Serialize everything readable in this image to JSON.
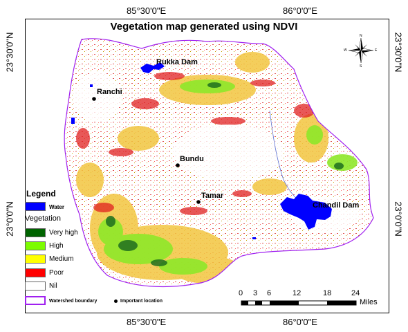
{
  "map": {
    "title": "Vegetation map generated using NDVI",
    "coordinates": {
      "top_left": "85°30'0\"E",
      "top_right": "86°0'0\"E",
      "bottom_left": "85°30'0\"E",
      "bottom_right": "86°0'0\"E",
      "left_top": "23°30'0\"N",
      "left_bottom": "23°0'0\"N",
      "right_top": "23°30'0\"N",
      "right_bottom": "23°0'0\"N"
    },
    "places": {
      "rukka": "Rukka Dam",
      "ranchi": "Ranchi",
      "bundu": "Bundu",
      "tamar": "Tamar",
      "chandil": "Chandil Dam"
    },
    "north_arrow": {
      "n": "N",
      "s": "S",
      "e": "E",
      "w": "W"
    }
  },
  "legend": {
    "title": "Legend",
    "water": {
      "label": "Water",
      "color": "#0000ff"
    },
    "vegetation_heading": "Vegetation",
    "classes": [
      {
        "label": "Very high",
        "color": "#006400"
      },
      {
        "label": "High",
        "color": "#7cfc00"
      },
      {
        "label": "Medium",
        "color": "#ffff00"
      },
      {
        "label": "Poor",
        "color": "#ff0000"
      },
      {
        "label": "Nil",
        "color": "#ffffff"
      }
    ],
    "boundary": {
      "label": "Watershed boundary",
      "color": "#a020f0"
    },
    "point": {
      "label": "Important location"
    }
  },
  "scale_bar": {
    "ticks": [
      "0",
      "3",
      "6",
      "12",
      "18",
      "24"
    ],
    "unit": "Miles"
  }
}
